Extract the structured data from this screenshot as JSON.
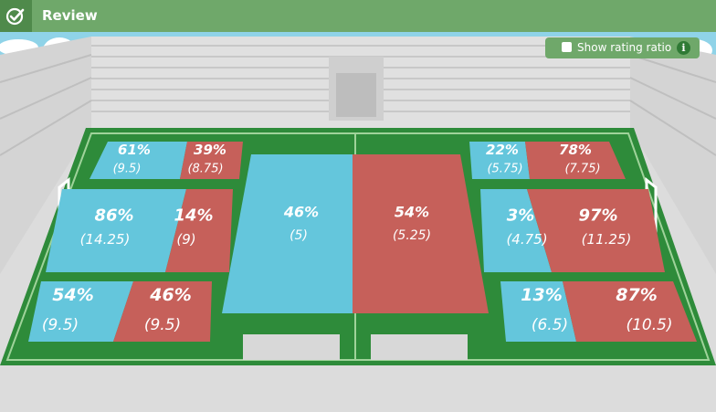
{
  "header": {
    "title": "Review",
    "icon": "check-circle-icon"
  },
  "rating_toggle": {
    "label": "Show rating ratio",
    "info_icon": "i",
    "checked": false
  },
  "colors": {
    "blue": "#64c6dc",
    "red": "#c6605a",
    "header_green": "#6fa86a",
    "pitch_green": "#2e8b3a"
  },
  "zones": [
    {
      "id": "left-top",
      "left_pct": "61%",
      "left_val": "(9.5)",
      "right_pct": "39%",
      "right_val": "(8.75)"
    },
    {
      "id": "left-mid",
      "left_pct": "86%",
      "left_val": "(14.25)",
      "right_pct": "14%",
      "right_val": "(9)"
    },
    {
      "id": "left-bottom",
      "left_pct": "54%",
      "left_val": "(9.5)",
      "right_pct": "46%",
      "right_val": "(9.5)"
    },
    {
      "id": "center",
      "left_pct": "46%",
      "left_val": "(5)",
      "right_pct": "54%",
      "right_val": "(5.25)"
    },
    {
      "id": "right-top",
      "left_pct": "22%",
      "left_val": "(5.75)",
      "right_pct": "78%",
      "right_val": "(7.75)"
    },
    {
      "id": "right-mid",
      "left_pct": "3%",
      "left_val": "(4.75)",
      "right_pct": "97%",
      "right_val": "(11.25)"
    },
    {
      "id": "right-bottom",
      "left_pct": "13%",
      "left_val": "(6.5)",
      "right_pct": "87%",
      "right_val": "(10.5)"
    }
  ]
}
